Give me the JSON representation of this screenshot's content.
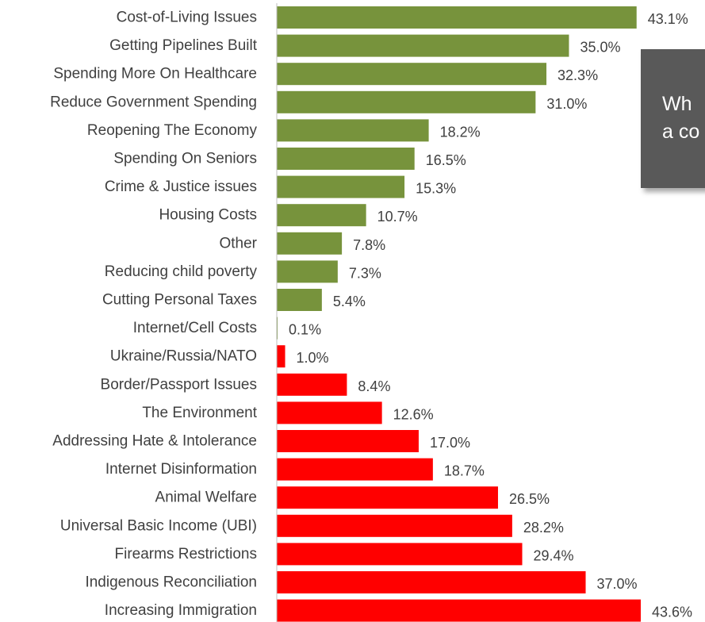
{
  "chart_data": {
    "type": "bar",
    "orientation": "horizontal",
    "categories": [
      "Cost-of-Living Issues",
      "Getting Pipelines Built",
      "Spending More On Healthcare",
      "Reduce Government Spending",
      "Reopening The Economy",
      "Spending On Seniors",
      "Crime & Justice issues",
      "Housing Costs",
      "Other",
      "Reducing child poverty",
      "Cutting Personal Taxes",
      "Internet/Cell Costs",
      "Ukraine/Russia/NATO",
      "Border/Passport Issues",
      "The Environment",
      "Addressing Hate & Intolerance",
      "Internet Disinformation",
      "Animal Welfare",
      "Universal Basic Income (UBI)",
      "Firearms Restrictions",
      "Indigenous Reconciliation",
      "Increasing Immigration"
    ],
    "values": [
      43.1,
      35.0,
      32.3,
      31.0,
      18.2,
      16.5,
      15.3,
      10.7,
      7.8,
      7.3,
      5.4,
      0.1,
      1.0,
      8.4,
      12.6,
      17.0,
      18.7,
      26.5,
      28.2,
      29.4,
      37.0,
      43.6
    ],
    "value_labels": [
      "43.1%",
      "35.0%",
      "32.3%",
      "31.0%",
      "18.2%",
      "16.5%",
      "15.3%",
      "10.7%",
      "7.8%",
      "7.3%",
      "5.4%",
      "0.1%",
      "1.0%",
      "8.4%",
      "12.6%",
      "17.0%",
      "18.7%",
      "26.5%",
      "28.2%",
      "29.4%",
      "37.0%",
      "43.6%"
    ],
    "bar_colors": [
      "#77933c",
      "#77933c",
      "#77933c",
      "#77933c",
      "#77933c",
      "#77933c",
      "#77933c",
      "#77933c",
      "#77933c",
      "#77933c",
      "#77933c",
      "#77933c",
      "#ff0000",
      "#ff0000",
      "#ff0000",
      "#ff0000",
      "#ff0000",
      "#ff0000",
      "#ff0000",
      "#ff0000",
      "#ff0000",
      "#ff0000"
    ],
    "xlim": [
      0,
      43.6
    ],
    "unit": "%",
    "grid": false,
    "legend": "none"
  },
  "callout": {
    "line1": "Wh",
    "line2": "a co"
  }
}
